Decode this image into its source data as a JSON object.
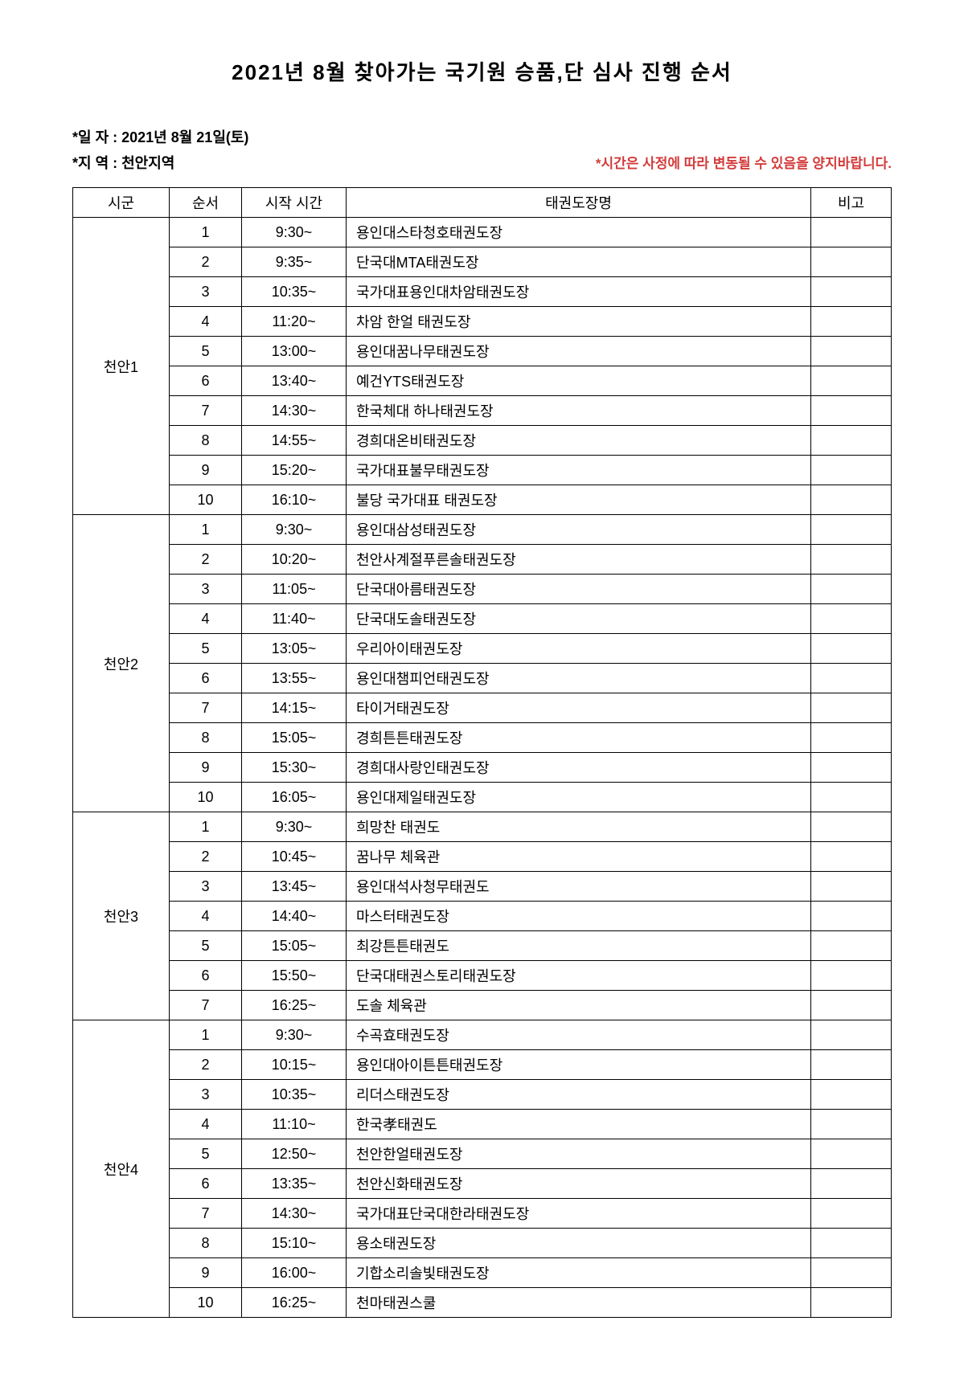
{
  "title": "2021년 8월 찾아가는 국기원 승품,단 심사 진행 순서",
  "meta": {
    "date_label": "*일 자 : 2021년 8월 21일(토)",
    "region_label": "*지 역 : 천안지역",
    "notice": "*시간은 사정에 따라 변동될 수 있음을 양지바랍니다."
  },
  "headers": {
    "region": "시군",
    "order": "순서",
    "time": "시작 시간",
    "name": "태권도장명",
    "remark": "비고"
  },
  "groups": [
    {
      "region": "천안1",
      "rows": [
        {
          "order": "1",
          "time": "9:30~",
          "name": "용인대스타청호태권도장",
          "remark": ""
        },
        {
          "order": "2",
          "time": "9:35~",
          "name": "단국대MTA태권도장",
          "remark": ""
        },
        {
          "order": "3",
          "time": "10:35~",
          "name": "국가대표용인대차암태권도장",
          "remark": ""
        },
        {
          "order": "4",
          "time": "11:20~",
          "name": "차암 한얼 태권도장",
          "remark": ""
        },
        {
          "order": "5",
          "time": "13:00~",
          "name": "용인대꿈나무태권도장",
          "remark": ""
        },
        {
          "order": "6",
          "time": "13:40~",
          "name": "예건YTS태권도장",
          "remark": ""
        },
        {
          "order": "7",
          "time": "14:30~",
          "name": "한국체대 하나태권도장",
          "remark": ""
        },
        {
          "order": "8",
          "time": "14:55~",
          "name": "경희대온비태권도장",
          "remark": ""
        },
        {
          "order": "9",
          "time": "15:20~",
          "name": "국가대표불무태권도장",
          "remark": ""
        },
        {
          "order": "10",
          "time": "16:10~",
          "name": "불당 국가대표 태권도장",
          "remark": ""
        }
      ]
    },
    {
      "region": "천안2",
      "rows": [
        {
          "order": "1",
          "time": "9:30~",
          "name": "용인대삼성태권도장",
          "remark": ""
        },
        {
          "order": "2",
          "time": "10:20~",
          "name": "천안사계절푸른솔태권도장",
          "remark": ""
        },
        {
          "order": "3",
          "time": "11:05~",
          "name": "단국대아름태권도장",
          "remark": ""
        },
        {
          "order": "4",
          "time": "11:40~",
          "name": "단국대도솔태권도장",
          "remark": ""
        },
        {
          "order": "5",
          "time": "13:05~",
          "name": "우리아이태권도장",
          "remark": ""
        },
        {
          "order": "6",
          "time": "13:55~",
          "name": "용인대챔피언태권도장",
          "remark": ""
        },
        {
          "order": "7",
          "time": "14:15~",
          "name": "타이거태권도장",
          "remark": ""
        },
        {
          "order": "8",
          "time": "15:05~",
          "name": "경희튼튼태권도장",
          "remark": ""
        },
        {
          "order": "9",
          "time": "15:30~",
          "name": "경희대사랑인태권도장",
          "remark": ""
        },
        {
          "order": "10",
          "time": "16:05~",
          "name": "용인대제일태권도장",
          "remark": ""
        }
      ]
    },
    {
      "region": "천안3",
      "rows": [
        {
          "order": "1",
          "time": "9:30~",
          "name": "희망찬 태권도",
          "remark": ""
        },
        {
          "order": "2",
          "time": "10:45~",
          "name": "꿈나무  체육관",
          "remark": ""
        },
        {
          "order": "3",
          "time": "13:45~",
          "name": "용인대석사청무태권도",
          "remark": ""
        },
        {
          "order": "4",
          "time": "14:40~",
          "name": "마스터태권도장",
          "remark": ""
        },
        {
          "order": "5",
          "time": "15:05~",
          "name": "최강튼튼태권도",
          "remark": ""
        },
        {
          "order": "6",
          "time": "15:50~",
          "name": "단국대태권스토리태권도장",
          "remark": ""
        },
        {
          "order": "7",
          "time": "16:25~",
          "name": "도솔  체육관",
          "remark": ""
        }
      ]
    },
    {
      "region": "천안4",
      "rows": [
        {
          "order": "1",
          "time": "9:30~",
          "name": "수곡효태권도장",
          "remark": ""
        },
        {
          "order": "2",
          "time": "10:15~",
          "name": "용인대아이튼튼태권도장",
          "remark": ""
        },
        {
          "order": "3",
          "time": "10:35~",
          "name": "리더스태권도장",
          "remark": ""
        },
        {
          "order": "4",
          "time": "11:10~",
          "name": "한국孝태권도",
          "remark": ""
        },
        {
          "order": "5",
          "time": "12:50~",
          "name": "천안한얼태권도장",
          "remark": ""
        },
        {
          "order": "6",
          "time": "13:35~",
          "name": "천안신화태권도장",
          "remark": ""
        },
        {
          "order": "7",
          "time": "14:30~",
          "name": "국가대표단국대한라태권도장",
          "remark": ""
        },
        {
          "order": "8",
          "time": "15:10~",
          "name": "용소태권도장",
          "remark": ""
        },
        {
          "order": "9",
          "time": "16:00~",
          "name": "기합소리솔빛태권도장",
          "remark": ""
        },
        {
          "order": "10",
          "time": "16:25~",
          "name": "천마태권스쿨",
          "remark": ""
        }
      ]
    }
  ]
}
